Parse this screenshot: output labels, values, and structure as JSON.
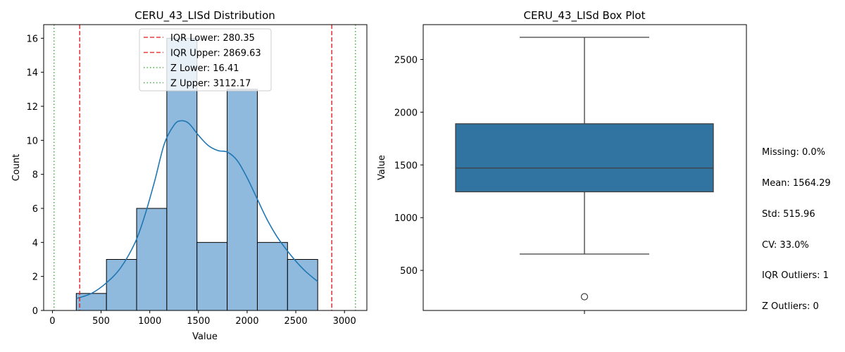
{
  "chart_data": [
    {
      "type": "bar",
      "title": "CERU_43_LISd Distribution",
      "xlabel": "Value",
      "ylabel": "Count",
      "xlim": [
        -90,
        3230
      ],
      "ylim": [
        0,
        16.8
      ],
      "xticks": [
        0,
        500,
        1000,
        1500,
        2000,
        2500,
        3000
      ],
      "yticks": [
        0,
        2,
        4,
        6,
        8,
        10,
        12,
        14,
        16
      ],
      "bins": [
        {
          "x0": 245,
          "x1": 555,
          "count": 1
        },
        {
          "x0": 555,
          "x1": 865,
          "count": 3
        },
        {
          "x0": 865,
          "x1": 1175,
          "count": 6
        },
        {
          "x0": 1175,
          "x1": 1485,
          "count": 16
        },
        {
          "x0": 1485,
          "x1": 1795,
          "count": 4
        },
        {
          "x0": 1795,
          "x1": 2105,
          "count": 13
        },
        {
          "x0": 2105,
          "x1": 2415,
          "count": 4
        },
        {
          "x0": 2415,
          "x1": 2725,
          "count": 3
        }
      ],
      "kde": {
        "x": [
          245,
          400,
          550,
          700,
          850,
          950,
          1050,
          1150,
          1250,
          1320,
          1400,
          1500,
          1600,
          1700,
          1800,
          1900,
          2000,
          2100,
          2200,
          2300,
          2400,
          2500,
          2600,
          2725
        ],
        "y": [
          0.7,
          1.0,
          1.6,
          2.5,
          4.0,
          5.6,
          7.6,
          9.8,
          10.9,
          11.15,
          11.0,
          10.3,
          9.7,
          9.4,
          9.3,
          8.8,
          7.8,
          6.6,
          5.4,
          4.4,
          3.6,
          2.9,
          2.3,
          1.7
        ]
      },
      "legend": {
        "placement": "top-center",
        "entries": [
          {
            "label": "IQR Lower: 280.35",
            "value": 280.35,
            "color": "#e41a1c",
            "style": "dashed"
          },
          {
            "label": "IQR Upper: 2869.63",
            "value": 2869.63,
            "color": "#e41a1c",
            "style": "dashed"
          },
          {
            "label": "Z Lower: 16.41",
            "value": 16.41,
            "color": "#2ca02c",
            "style": "dotted"
          },
          {
            "label": "Z Upper: 3112.17",
            "value": 3112.17,
            "color": "#2ca02c",
            "style": "dotted"
          }
        ]
      },
      "bar_color": "#8fbadd",
      "kde_color": "#1f77b4"
    },
    {
      "type": "box",
      "title": "CERU_43_LISd Box Plot",
      "ylabel": "Value",
      "ylim": [
        120,
        2830
      ],
      "yticks": [
        500,
        1000,
        1500,
        2000,
        2500
      ],
      "box": {
        "whisker_low": 655,
        "q1": 1245,
        "median": 1470,
        "q3": 1890,
        "whisker_high": 2710,
        "outliers": [
          250
        ]
      },
      "box_color": "#3274a1"
    }
  ],
  "stats": {
    "lines": [
      "Missing: 0.0%",
      "Mean: 1564.29",
      "Std: 515.96",
      "CV: 33.0%",
      "IQR Outliers: 1",
      "Z Outliers: 0"
    ]
  }
}
